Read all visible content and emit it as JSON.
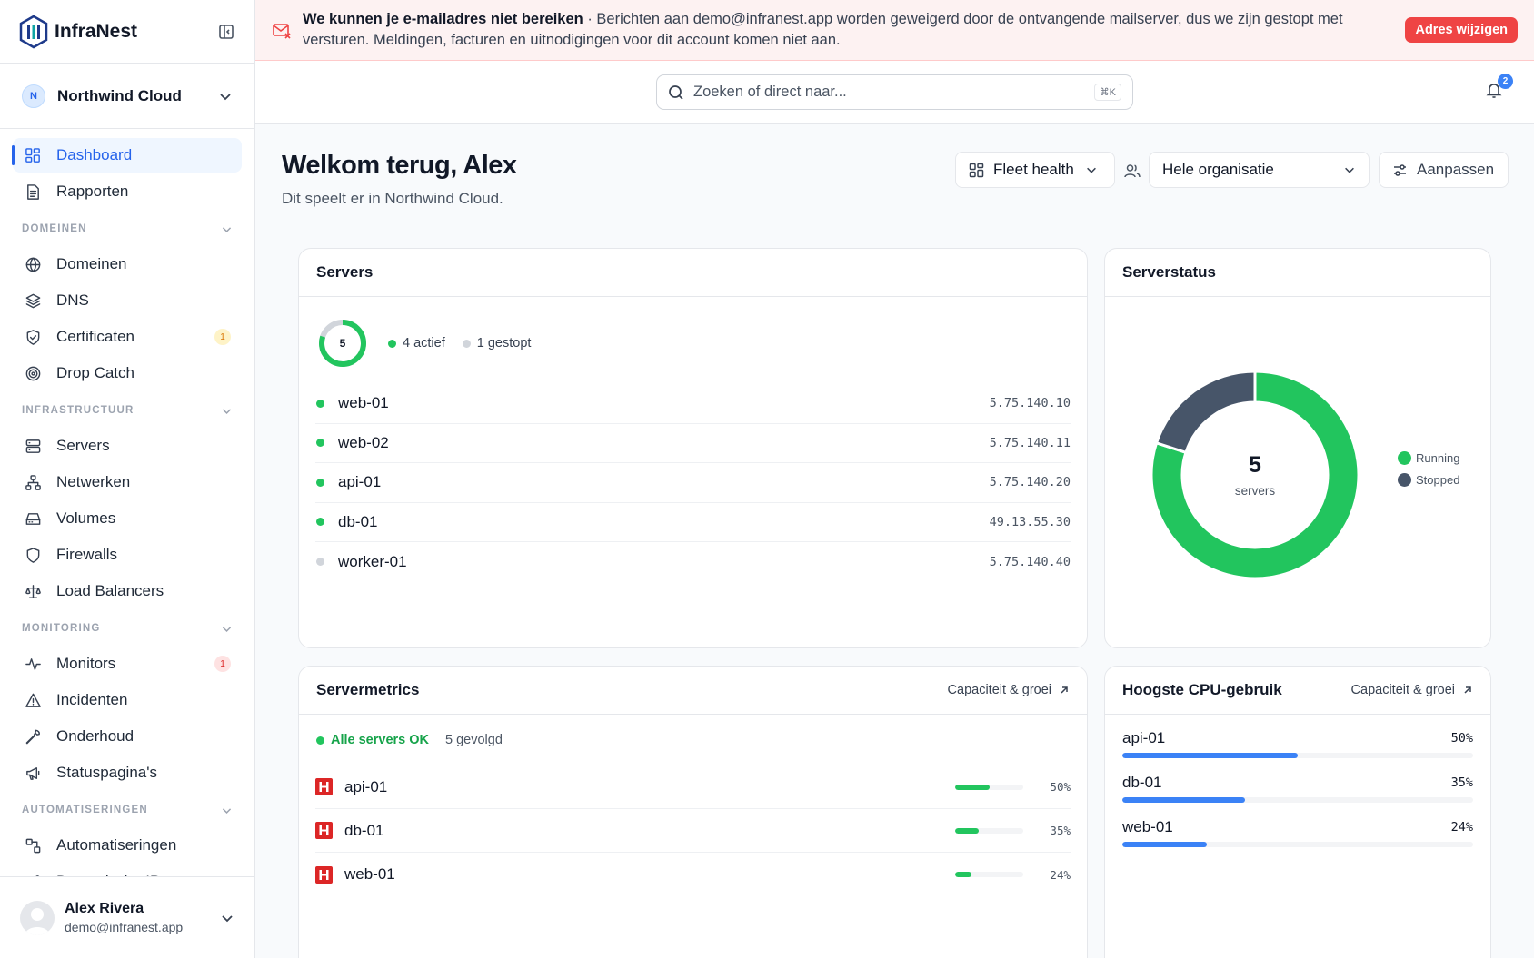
{
  "app": {
    "name": "InfraNest"
  },
  "org": {
    "initial": "N",
    "name": "Northwind Cloud"
  },
  "sidebar": {
    "top_items": [
      {
        "label": "Dashboard",
        "icon": "dashboard-icon",
        "active": true
      },
      {
        "label": "Rapporten",
        "icon": "report-icon"
      }
    ],
    "sections": [
      {
        "title": "DOMEINEN",
        "items": [
          {
            "label": "Domeinen",
            "icon": "globe-icon"
          },
          {
            "label": "DNS",
            "icon": "layers-icon"
          },
          {
            "label": "Certificaten",
            "icon": "shield-check-icon",
            "badge": "1",
            "badge_kind": "warn"
          },
          {
            "label": "Drop Catch",
            "icon": "target-icon"
          }
        ]
      },
      {
        "title": "INFRASTRUCTUUR",
        "items": [
          {
            "label": "Servers",
            "icon": "server-icon"
          },
          {
            "label": "Netwerken",
            "icon": "network-icon"
          },
          {
            "label": "Volumes",
            "icon": "hard-drive-icon"
          },
          {
            "label": "Firewalls",
            "icon": "shield-icon"
          },
          {
            "label": "Load Balancers",
            "icon": "scale-icon"
          }
        ]
      },
      {
        "title": "MONITORING",
        "items": [
          {
            "label": "Monitors",
            "icon": "activity-icon",
            "badge": "1",
            "badge_kind": "err"
          },
          {
            "label": "Incidenten",
            "icon": "alert-triangle-icon"
          },
          {
            "label": "Onderhoud",
            "icon": "wrench-icon"
          },
          {
            "label": "Statuspagina's",
            "icon": "megaphone-icon"
          }
        ]
      },
      {
        "title": "AUTOMATISERINGEN",
        "items": [
          {
            "label": "Automatiseringen",
            "icon": "workflow-icon"
          },
          {
            "label": "Dynamische IPs",
            "icon": "route-icon"
          }
        ]
      }
    ]
  },
  "user": {
    "name": "Alex Rivera",
    "email": "demo@infranest.app"
  },
  "banner": {
    "title": "We kunnen je e-mailadres niet bereiken",
    "message": " · Berichten aan demo@infranest.app worden geweigerd door de ontvangende mailserver, dus we zijn gestopt met versturen. Meldingen, facturen en uitnodigingen voor dit account komen niet aan.",
    "button": "Adres wijzigen"
  },
  "search": {
    "placeholder": "Zoeken of direct naar...",
    "shortcut": "⌘K"
  },
  "notifications": {
    "count": "2"
  },
  "header": {
    "welcome": "Welkom terug, Alex",
    "subtitle": "Dit speelt er in Northwind Cloud.",
    "view": "Fleet health",
    "scope": "Hele organisatie",
    "customize": "Aanpassen"
  },
  "servers_card": {
    "title": "Servers",
    "total": "5",
    "active_fraction": 0.8,
    "active_label": "4 actief",
    "stopped_label": "1 gestopt",
    "rows": [
      {
        "name": "web-01",
        "ip": "5.75.140.10",
        "running": true
      },
      {
        "name": "web-02",
        "ip": "5.75.140.11",
        "running": true
      },
      {
        "name": "api-01",
        "ip": "5.75.140.20",
        "running": true
      },
      {
        "name": "db-01",
        "ip": "49.13.55.30",
        "running": true
      },
      {
        "name": "worker-01",
        "ip": "5.75.140.40",
        "running": false
      }
    ]
  },
  "status_card": {
    "title": "Serverstatus",
    "center_value": "5",
    "center_label": "servers",
    "legend_running": "Running",
    "legend_stopped": "Stopped",
    "colors": {
      "running": "#22c55e",
      "stopped": "#475569"
    }
  },
  "metrics_card": {
    "title": "Servermetrics",
    "link": "Capaciteit & groei",
    "ok_label": "Alle servers OK",
    "followed": "5 gevolgd",
    "rows": [
      {
        "name": "api-01",
        "pct_label": "50%",
        "value": 50
      },
      {
        "name": "db-01",
        "pct_label": "35%",
        "value": 35
      },
      {
        "name": "web-01",
        "pct_label": "24%",
        "value": 24
      }
    ]
  },
  "cpu_card": {
    "title": "Hoogste CPU-gebruik",
    "link": "Capaciteit & groei",
    "rows": [
      {
        "name": "api-01",
        "pct_label": "50%",
        "value": 50
      },
      {
        "name": "db-01",
        "pct_label": "35%",
        "value": 35
      },
      {
        "name": "web-01",
        "pct_label": "24%",
        "value": 24
      }
    ]
  },
  "chart_data": {
    "type": "pie",
    "categories": [
      "Running",
      "Stopped"
    ],
    "values": [
      4,
      1
    ],
    "title": "Serverstatus"
  }
}
